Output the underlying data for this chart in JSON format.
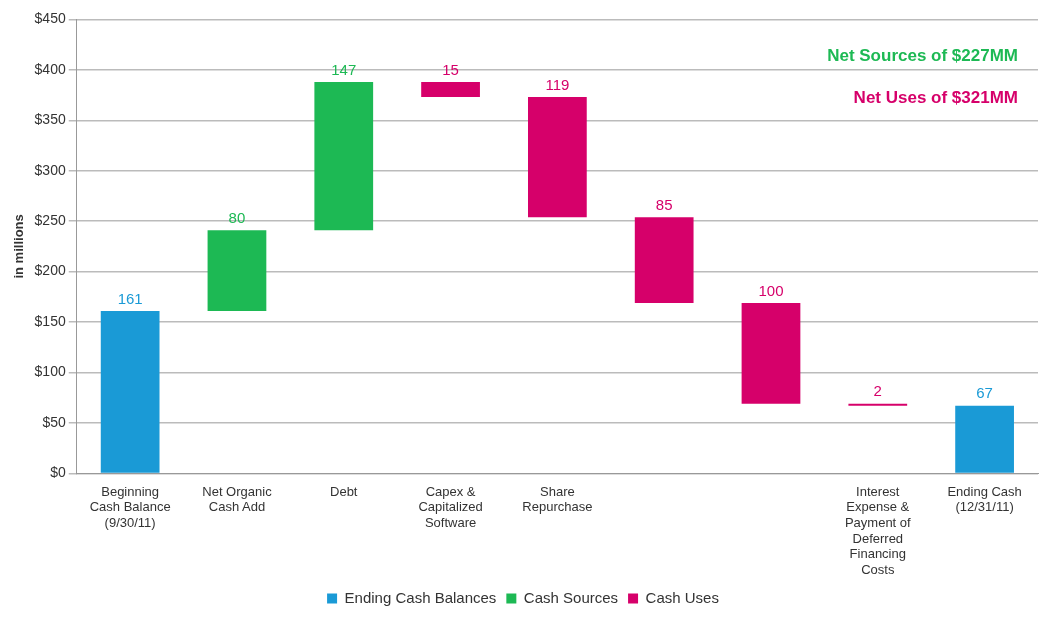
{
  "chart_data": {
    "type": "bar",
    "ylabel": "in millions",
    "categories": [
      "Beginning Cash Balance (9/30/11)",
      "Net Organic Cash Add",
      "Debt",
      "Capex & Capitalized Software",
      "Share Repurchase",
      null,
      null,
      "Interest Expense & Payment of Deferred Financing Costs",
      "Ending Cash (12/31/11)"
    ],
    "series": [
      {
        "name": "Ending Cash Balances",
        "color": "#1a9ad6",
        "values": [
          161,
          null,
          null,
          null,
          null,
          null,
          null,
          null,
          67
        ],
        "base": [
          0,
          null,
          null,
          null,
          null,
          null,
          null,
          null,
          0
        ]
      },
      {
        "name": "Cash Sources",
        "color": "#1db954",
        "values": [
          null,
          80,
          147,
          null,
          null,
          null,
          null,
          null,
          null
        ],
        "base": [
          null,
          161,
          241,
          null,
          null,
          null,
          null,
          null,
          null
        ]
      },
      {
        "name": "Cash Uses",
        "color": "#d6006a",
        "values": [
          null,
          null,
          null,
          15,
          119,
          85,
          100,
          2,
          null
        ],
        "base": [
          null,
          null,
          null,
          373,
          254,
          169,
          69,
          67,
          null
        ]
      }
    ],
    "ylim": [
      0,
      450
    ],
    "yticks": [
      {
        "value": 0,
        "label": "$0"
      },
      {
        "value": 50,
        "label": "$50"
      },
      {
        "value": 100,
        "label": "$100"
      },
      {
        "value": 150,
        "label": "$150"
      },
      {
        "value": 200,
        "label": "$200"
      },
      {
        "value": 250,
        "label": "$250"
      },
      {
        "value": 300,
        "label": "$300"
      },
      {
        "value": 350,
        "label": "$350"
      },
      {
        "value": 400,
        "label": "$400"
      },
      {
        "value": 450,
        "label": "$450"
      }
    ],
    "grid": "y",
    "legend": "bottom",
    "data_labels": true,
    "annotations": [
      "Net Sources of $227MM",
      "Net Uses of $321MM"
    ]
  }
}
